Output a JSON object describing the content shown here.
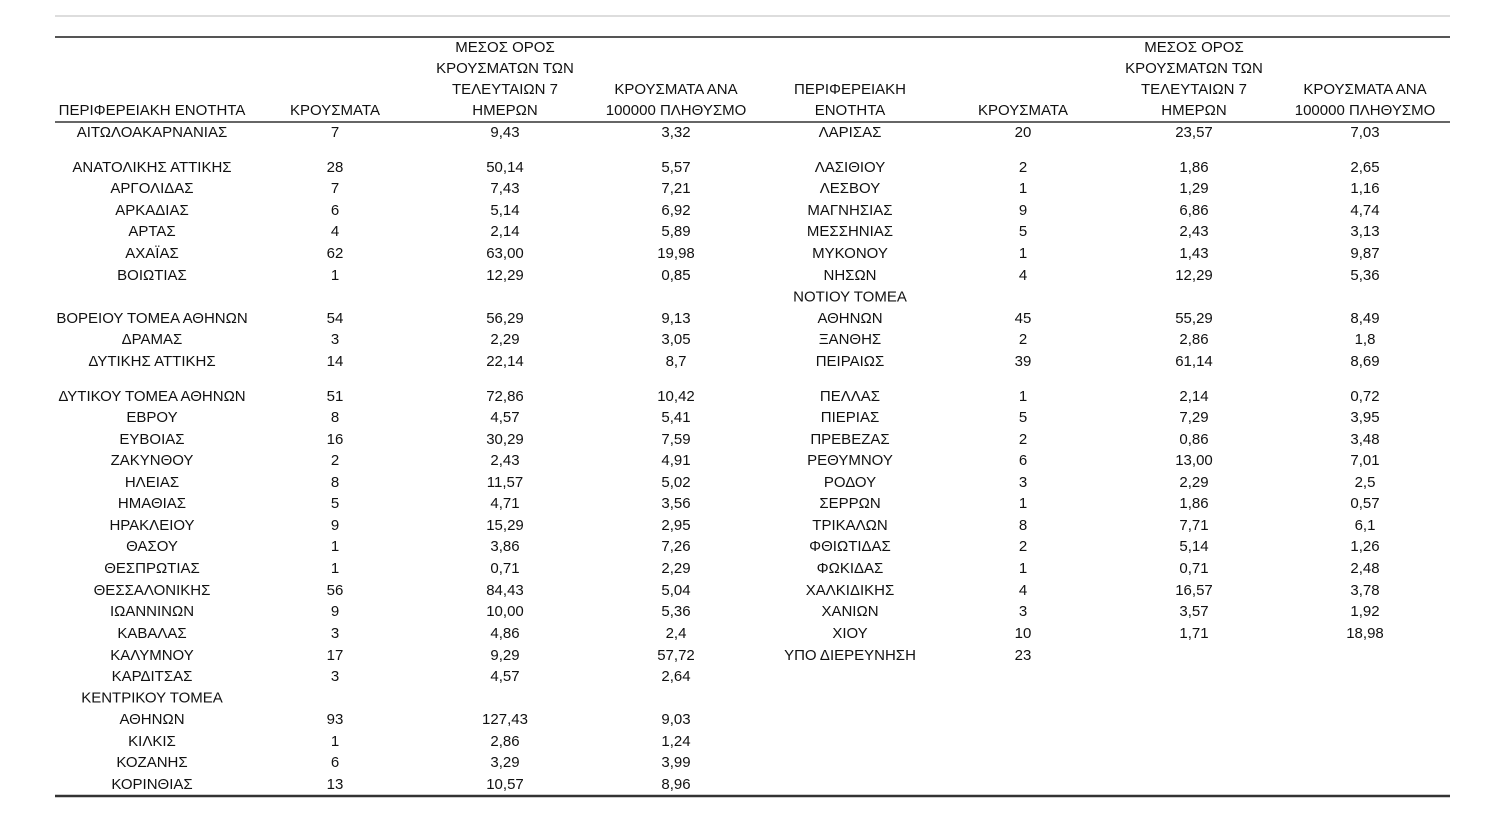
{
  "table": {
    "left": {
      "header": [
        [
          "ΠΕΡΙΦΕΡΕΙΑΚΗ ΕΝΟΤΗΤΑ"
        ],
        [
          "ΚΡΟΥΣΜΑΤΑ"
        ],
        [
          "ΜΕΣΟΣ ΟΡΟΣ",
          "ΚΡΟΥΣΜΑΤΩΝ ΤΩΝ",
          "ΤΕΛΕΥΤΑΙΩΝ 7",
          "ΗΜΕΡΩΝ"
        ],
        [
          "ΚΡΟΥΣΜΑΤΑ ΑΝΑ",
          "100000 ΠΛΗΘΥΣΜΟ"
        ]
      ],
      "rows": [
        [
          "ΑΙΤΩΛΟΑΚΑΡΝΑΝΙΑΣ",
          "7",
          "9,43",
          "3,32"
        ],
        [
          "ΑΝΑΤΟΛΙΚΗΣ ΑΤΤΙΚΗΣ",
          "28",
          "50,14",
          "5,57"
        ],
        [
          "ΑΡΓΟΛΙΔΑΣ",
          "7",
          "7,43",
          "7,21"
        ],
        [
          "ΑΡΚΑΔΙΑΣ",
          "6",
          "5,14",
          "6,92"
        ],
        [
          "ΑΡΤΑΣ",
          "4",
          "2,14",
          "5,89"
        ],
        [
          "ΑΧΑΪΑΣ",
          "62",
          "63,00",
          "19,98"
        ],
        [
          "ΒΟΙΩΤΙΑΣ",
          "1",
          "12,29",
          "0,85"
        ],
        [
          "ΒΟΡΕΙΟΥ ΤΟΜΕΑ ΑΘΗΝΩΝ",
          "54",
          "56,29",
          "9,13"
        ],
        [
          "ΔΡΑΜΑΣ",
          "3",
          "2,29",
          "3,05"
        ],
        [
          "ΔΥΤΙΚΗΣ ΑΤΤΙΚΗΣ",
          "14",
          "22,14",
          "8,7"
        ],
        [
          "ΔΥΤΙΚΟΥ ΤΟΜΕΑ ΑΘΗΝΩΝ",
          "51",
          "72,86",
          "10,42"
        ],
        [
          "ΕΒΡΟΥ",
          "8",
          "4,57",
          "5,41"
        ],
        [
          "ΕΥΒΟΙΑΣ",
          "16",
          "30,29",
          "7,59"
        ],
        [
          "ΖΑΚΥΝΘΟΥ",
          "2",
          "2,43",
          "4,91"
        ],
        [
          "ΗΛΕΙΑΣ",
          "8",
          "11,57",
          "5,02"
        ],
        [
          "ΗΜΑΘΙΑΣ",
          "5",
          "4,71",
          "3,56"
        ],
        [
          "ΗΡΑΚΛΕΙΟΥ",
          "9",
          "15,29",
          "2,95"
        ],
        [
          "ΘΑΣΟΥ",
          "1",
          "3,86",
          "7,26"
        ],
        [
          "ΘΕΣΠΡΩΤΙΑΣ",
          "1",
          "0,71",
          "2,29"
        ],
        [
          "ΘΕΣΣΑΛΟΝΙΚΗΣ",
          "56",
          "84,43",
          "5,04"
        ],
        [
          "ΙΩΑΝΝΙΝΩΝ",
          "9",
          "10,00",
          "5,36"
        ],
        [
          "ΚΑΒΑΛΑΣ",
          "3",
          "4,86",
          "2,4"
        ],
        [
          "ΚΑΛΥΜΝΟΥ",
          "17",
          "9,29",
          "57,72"
        ],
        [
          "ΚΑΡΔΙΤΣΑΣ",
          "3",
          "4,57",
          "2,64"
        ],
        [
          [
            "ΚΕΝΤΡΙΚΟΥ ΤΟΜΕΑ",
            "ΑΘΗΝΩΝ"
          ],
          "93",
          "127,43",
          "9,03"
        ],
        [
          "ΚΙΛΚΙΣ",
          "1",
          "2,86",
          "1,24"
        ],
        [
          "ΚΟΖΑΝΗΣ",
          "6",
          "3,29",
          "3,99"
        ],
        [
          "ΚΟΡΙΝΘΙΑΣ",
          "13",
          "10,57",
          "8,96"
        ]
      ]
    },
    "right": {
      "header": [
        [
          "ΠΕΡΙΦΕΡΕΙΑΚΗ",
          "ΕΝΟΤΗΤΑ"
        ],
        [
          "ΚΡΟΥΣΜΑΤΑ"
        ],
        [
          "ΜΕΣΟΣ ΟΡΟΣ",
          "ΚΡΟΥΣΜΑΤΩΝ ΤΩΝ",
          "ΤΕΛΕΥΤΑΙΩΝ 7",
          "ΗΜΕΡΩΝ"
        ],
        [
          "ΚΡΟΥΣΜΑΤΑ ΑΝΑ",
          "100000 ΠΛΗΘΥΣΜΟ"
        ]
      ],
      "rows": [
        [
          "ΛΑΡΙΣΑΣ",
          "20",
          "23,57",
          "7,03"
        ],
        [
          "ΛΑΣΙΘΙΟΥ",
          "2",
          "1,86",
          "2,65"
        ],
        [
          "ΛΕΣΒΟΥ",
          "1",
          "1,29",
          "1,16"
        ],
        [
          "ΜΑΓΝΗΣΙΑΣ",
          "9",
          "6,86",
          "4,74"
        ],
        [
          "ΜΕΣΣΗΝΙΑΣ",
          "5",
          "2,43",
          "3,13"
        ],
        [
          "ΜΥΚΟΝΟΥ",
          "1",
          "1,43",
          "9,87"
        ],
        [
          "ΝΗΣΩΝ",
          "4",
          "12,29",
          "5,36"
        ],
        [
          [
            "ΝΟΤΙΟΥ ΤΟΜΕΑ",
            "ΑΘΗΝΩΝ"
          ],
          "45",
          "55,29",
          "8,49"
        ],
        [
          "ΞΑΝΘΗΣ",
          "2",
          "2,86",
          "1,8"
        ],
        [
          "ΠΕΙΡΑΙΩΣ",
          "39",
          "61,14",
          "8,69"
        ],
        [
          "ΠΕΛΛΑΣ",
          "1",
          "2,14",
          "0,72"
        ],
        [
          "ΠΙΕΡΙΑΣ",
          "5",
          "7,29",
          "3,95"
        ],
        [
          "ΠΡΕΒΕΖΑΣ",
          "2",
          "0,86",
          "3,48"
        ],
        [
          "ΡΕΘΥΜΝΟΥ",
          "6",
          "13,00",
          "7,01"
        ],
        [
          "ΡΟΔΟΥ",
          "3",
          "2,29",
          "2,5"
        ],
        [
          "ΣΕΡΡΩΝ",
          "1",
          "1,86",
          "0,57"
        ],
        [
          "ΤΡΙΚΑΛΩΝ",
          "8",
          "7,71",
          "6,1"
        ],
        [
          "ΦΘΙΩΤΙΔΑΣ",
          "2",
          "5,14",
          "1,26"
        ],
        [
          "ΦΩΚΙΔΑΣ",
          "1",
          "0,71",
          "2,48"
        ],
        [
          "ΧΑΛΚΙΔΙΚΗΣ",
          "4",
          "16,57",
          "3,78"
        ],
        [
          "ΧΑΝΙΩΝ",
          "3",
          "3,57",
          "1,92"
        ],
        [
          "ΧΙΟΥ",
          "10",
          "1,71",
          "18,98"
        ],
        [
          "ΥΠΟ ΔΙΕΡΕΥΝΗΣΗ",
          "23"
        ]
      ]
    }
  }
}
